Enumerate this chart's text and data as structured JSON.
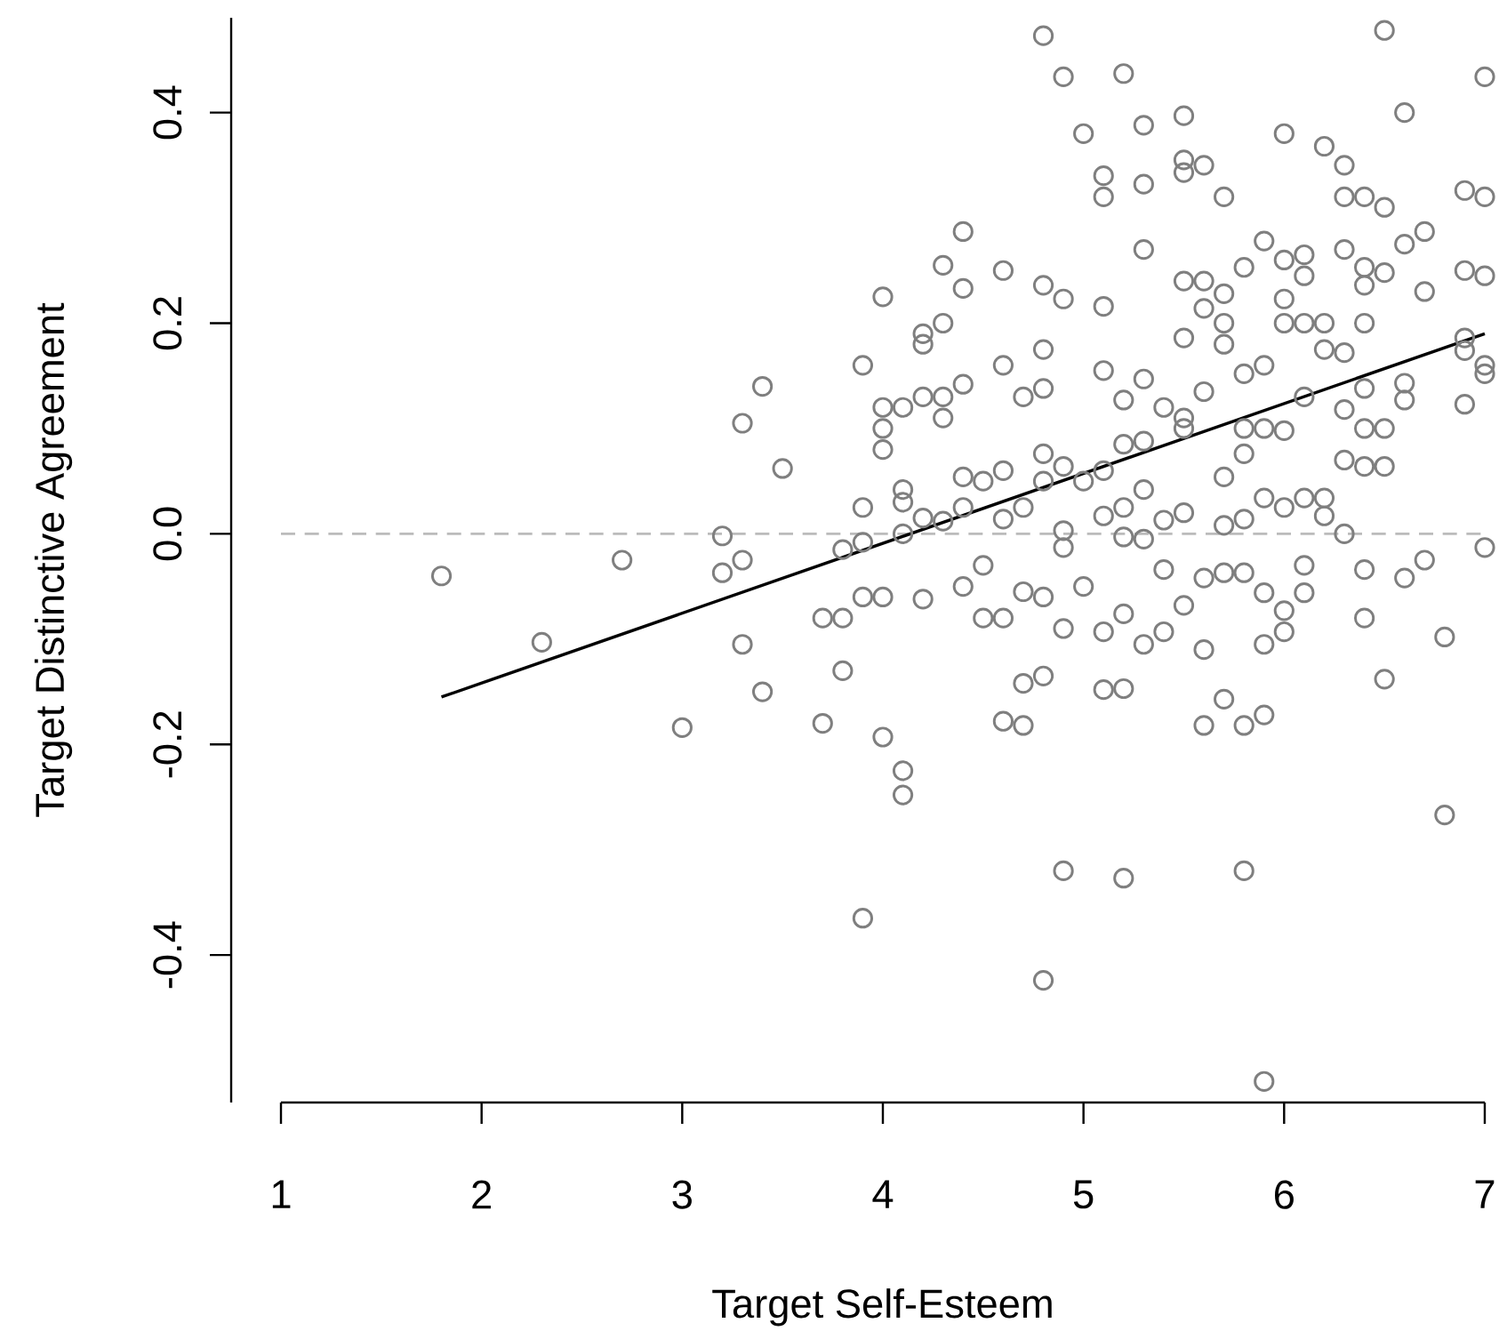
{
  "chart_data": {
    "type": "scatter",
    "xlabel": "Target Self-Esteem",
    "ylabel": "Target Distinctive Agreement",
    "xlim": [
      1,
      7
    ],
    "ylim": [
      -0.54,
      0.49
    ],
    "xticks": [
      1,
      2,
      3,
      4,
      5,
      6,
      7
    ],
    "yticks": [
      -0.4,
      -0.2,
      {
        "value": 0,
        "label": "0.0"
      },
      0.2,
      0.4
    ],
    "ref_lines": [
      {
        "axis": "y",
        "value": 0,
        "color": "#bbbbbb",
        "line_style": "dashed"
      }
    ],
    "series": [
      {
        "type": "scatter",
        "color": "#7f7f7f",
        "marker": "circle",
        "x": [
          1.8,
          2.3,
          2.7,
          3.0,
          3.2,
          3.2,
          3.3,
          3.3,
          3.3,
          3.4,
          3.4,
          3.5,
          3.7,
          3.7,
          3.8,
          3.8,
          3.8,
          3.9,
          3.9,
          3.9,
          3.9,
          3.9,
          4.0,
          4.0,
          4.0,
          4.0,
          4.0,
          4.0,
          4.1,
          4.1,
          4.1,
          4.1,
          4.1,
          4.1,
          4.2,
          4.2,
          4.2,
          4.2,
          4.2,
          4.3,
          4.3,
          4.3,
          4.3,
          4.3,
          4.4,
          4.4,
          4.4,
          4.4,
          4.4,
          4.4,
          4.5,
          4.5,
          4.5,
          4.6,
          4.6,
          4.6,
          4.6,
          4.6,
          4.6,
          4.7,
          4.7,
          4.7,
          4.7,
          4.7,
          4.8,
          4.8,
          4.8,
          4.8,
          4.8,
          4.8,
          4.8,
          4.8,
          4.8,
          4.9,
          4.9,
          4.9,
          4.9,
          4.9,
          4.9,
          4.9,
          5.0,
          5.0,
          5.0,
          5.1,
          5.1,
          5.1,
          5.1,
          5.1,
          5.1,
          5.1,
          5.1,
          5.2,
          5.2,
          5.2,
          5.2,
          5.2,
          5.2,
          5.2,
          5.2,
          5.3,
          5.3,
          5.3,
          5.3,
          5.3,
          5.3,
          5.3,
          5.3,
          5.4,
          5.4,
          5.4,
          5.4,
          5.5,
          5.5,
          5.5,
          5.5,
          5.5,
          5.5,
          5.5,
          5.5,
          5.5,
          5.6,
          5.6,
          5.6,
          5.6,
          5.6,
          5.6,
          5.6,
          5.7,
          5.7,
          5.7,
          5.7,
          5.7,
          5.7,
          5.7,
          5.7,
          5.8,
          5.8,
          5.8,
          5.8,
          5.8,
          5.8,
          5.8,
          5.8,
          5.9,
          5.9,
          5.9,
          5.9,
          5.9,
          5.9,
          5.9,
          5.9,
          6.0,
          6.0,
          6.0,
          6.0,
          6.0,
          6.0,
          6.0,
          6.0,
          6.1,
          6.1,
          6.1,
          6.1,
          6.1,
          6.1,
          6.1,
          6.2,
          6.2,
          6.2,
          6.2,
          6.2,
          6.3,
          6.3,
          6.3,
          6.3,
          6.3,
          6.3,
          6.3,
          6.4,
          6.4,
          6.4,
          6.4,
          6.4,
          6.4,
          6.4,
          6.4,
          6.4,
          6.5,
          6.5,
          6.5,
          6.5,
          6.5,
          6.5,
          6.6,
          6.6,
          6.6,
          6.6,
          6.6,
          6.7,
          6.7,
          6.7,
          6.8,
          6.8,
          6.9,
          6.9,
          6.9,
          6.9,
          6.9,
          7.0,
          7.0,
          7.0,
          7.0,
          7.0,
          7.0
        ],
        "values": [
          -0.04,
          -0.103,
          -0.025,
          -0.184,
          -0.002,
          -0.037,
          0.105,
          -0.025,
          -0.105,
          0.14,
          -0.15,
          0.062,
          -0.18,
          -0.08,
          -0.015,
          -0.08,
          -0.13,
          0.16,
          -0.008,
          -0.06,
          -0.365,
          0.025,
          0.225,
          0.12,
          0.1,
          0.08,
          -0.193,
          -0.06,
          0.042,
          0.03,
          0.0,
          -0.225,
          -0.248,
          0.12,
          0.19,
          0.18,
          0.13,
          0.015,
          -0.062,
          0.255,
          0.2,
          0.13,
          0.11,
          0.012,
          0.287,
          0.233,
          0.142,
          0.054,
          0.025,
          -0.05,
          0.05,
          -0.03,
          -0.08,
          0.25,
          0.16,
          0.06,
          0.014,
          -0.08,
          -0.178,
          0.13,
          0.025,
          -0.055,
          -0.142,
          -0.182,
          0.473,
          0.236,
          0.175,
          0.138,
          0.076,
          0.05,
          -0.06,
          -0.135,
          -0.424,
          0.434,
          0.223,
          0.064,
          0.003,
          -0.013,
          -0.09,
          -0.32,
          0.38,
          0.05,
          -0.05,
          0.34,
          0.32,
          0.216,
          0.155,
          0.06,
          0.017,
          -0.093,
          -0.148,
          0.437,
          0.127,
          0.085,
          0.025,
          -0.003,
          -0.076,
          -0.147,
          -0.327,
          0.388,
          0.332,
          0.27,
          0.147,
          0.088,
          0.042,
          -0.005,
          -0.105,
          0.12,
          0.013,
          -0.034,
          -0.093,
          0.397,
          0.355,
          0.343,
          0.24,
          0.186,
          0.11,
          0.1,
          0.02,
          -0.068,
          0.35,
          0.24,
          0.214,
          0.135,
          -0.042,
          -0.11,
          -0.182,
          0.32,
          0.228,
          0.2,
          0.18,
          0.054,
          0.008,
          -0.037,
          -0.157,
          0.253,
          0.152,
          0.1,
          0.076,
          0.014,
          -0.037,
          -0.182,
          -0.32,
          0.278,
          0.16,
          0.1,
          0.034,
          -0.056,
          -0.105,
          -0.172,
          -0.52,
          0.38,
          0.26,
          0.223,
          0.2,
          0.098,
          0.025,
          -0.073,
          -0.093,
          0.265,
          0.245,
          0.2,
          0.13,
          0.034,
          -0.03,
          -0.056,
          0.368,
          0.2,
          0.175,
          0.034,
          0.017,
          0.35,
          0.32,
          0.27,
          0.172,
          0.118,
          0.07,
          0.0,
          0.32,
          0.253,
          0.236,
          0.2,
          0.138,
          0.1,
          0.064,
          -0.034,
          -0.08,
          0.478,
          0.31,
          0.248,
          0.1,
          0.064,
          -0.138,
          0.4,
          0.275,
          0.143,
          0.127,
          -0.042,
          0.287,
          0.23,
          -0.025,
          -0.098,
          -0.267,
          0.326,
          0.25,
          0.186,
          0.174,
          0.123,
          0.434,
          0.32,
          0.245,
          0.16,
          0.152,
          -0.013
        ]
      },
      {
        "type": "line",
        "color": "#000000",
        "marker": "none",
        "line_style": "solid",
        "x": [
          1.8,
          7.0
        ],
        "values": [
          -0.155,
          0.19
        ]
      }
    ]
  }
}
